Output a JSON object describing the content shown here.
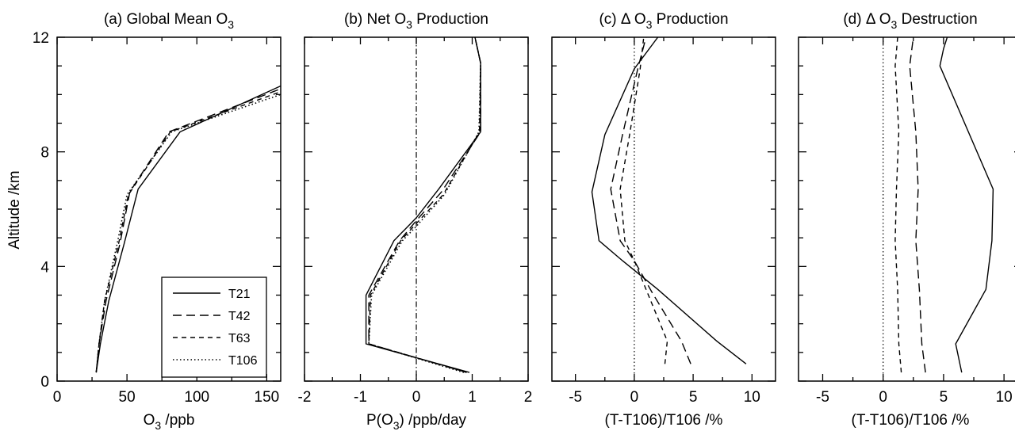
{
  "figure": {
    "ylabel": "Altitude /km",
    "yticks": [
      0,
      4,
      8,
      12
    ],
    "ylim": [
      0,
      12
    ]
  },
  "legend": {
    "entries": [
      {
        "name": "T21",
        "dash": "solid"
      },
      {
        "name": "T42",
        "dash": "long-dash"
      },
      {
        "name": "T63",
        "dash": "short-dash"
      },
      {
        "name": "T106",
        "dash": "dotted"
      }
    ]
  },
  "chart_data": [
    {
      "type": "line",
      "title_prefix": "(a) Global Mean O",
      "title_sub": "3",
      "title_suffix": "",
      "xlabel_prefix": "O",
      "xlabel_sub": "3",
      "xlabel_suffix": " /ppb",
      "xlim": [
        0,
        160
      ],
      "xticks": [
        0,
        50,
        100,
        150
      ],
      "ylim": [
        0,
        12
      ],
      "reference_line": null,
      "series": [
        {
          "name": "T21",
          "dash": "solid",
          "points": [
            [
              28,
              0.3
            ],
            [
              31,
              1.3
            ],
            [
              37,
              2.8
            ],
            [
              48,
              4.8
            ],
            [
              58,
              6.7
            ],
            [
              88,
              8.7
            ],
            [
              160,
              10.3
            ]
          ]
        },
        {
          "name": "T42",
          "dash": "long-dash",
          "points": [
            [
              28,
              0.3
            ],
            [
              30,
              1.3
            ],
            [
              35,
              2.8
            ],
            [
              45,
              4.8
            ],
            [
              52,
              6.6
            ],
            [
              80,
              8.7
            ],
            [
              160,
              10.2
            ]
          ]
        },
        {
          "name": "T63",
          "dash": "short-dash",
          "points": [
            [
              28,
              0.3
            ],
            [
              30,
              1.3
            ],
            [
              34,
              2.8
            ],
            [
              44,
              4.8
            ],
            [
              51,
              6.5
            ],
            [
              81,
              8.7
            ],
            [
              160,
              10.1
            ]
          ]
        },
        {
          "name": "T106",
          "dash": "dotted",
          "points": [
            [
              28,
              0.3
            ],
            [
              30,
              1.3
            ],
            [
              34,
              2.8
            ],
            [
              43,
              4.8
            ],
            [
              50,
              6.5
            ],
            [
              82,
              8.7
            ],
            [
              160,
              10.0
            ]
          ]
        }
      ]
    },
    {
      "type": "line",
      "title_prefix": "(b) Net O",
      "title_sub": "3",
      "title_suffix": " Production",
      "xlabel_prefix": "P(O",
      "xlabel_sub": "3",
      "xlabel_suffix": ") /ppb/day",
      "xlim": [
        -2,
        2
      ],
      "xticks": [
        -2,
        -1,
        0,
        1,
        2
      ],
      "ylim": [
        0,
        12
      ],
      "reference_line": {
        "x": 0,
        "style": "dash-dot"
      },
      "series": [
        {
          "name": "T21",
          "dash": "solid",
          "points": [
            [
              0.95,
              0.3
            ],
            [
              -0.9,
              1.3
            ],
            [
              -0.9,
              3.0
            ],
            [
              -0.4,
              4.9
            ],
            [
              0,
              5.7
            ],
            [
              0.4,
              6.7
            ],
            [
              1.15,
              8.7
            ],
            [
              1.15,
              11.1
            ],
            [
              1.05,
              12.0
            ]
          ]
        },
        {
          "name": "T42",
          "dash": "long-dash",
          "points": [
            [
              0.9,
              0.3
            ],
            [
              -0.85,
              1.3
            ],
            [
              -0.85,
              3.0
            ],
            [
              -0.3,
              4.9
            ],
            [
              0,
              5.6
            ],
            [
              0.45,
              6.6
            ],
            [
              1.15,
              8.7
            ],
            [
              1.15,
              11.1
            ],
            [
              1.05,
              12.0
            ]
          ]
        },
        {
          "name": "T63",
          "dash": "short-dash",
          "points": [
            [
              0.9,
              0.3
            ],
            [
              -0.85,
              1.3
            ],
            [
              -0.82,
              3.0
            ],
            [
              -0.28,
              4.9
            ],
            [
              0,
              5.5
            ],
            [
              0.48,
              6.5
            ],
            [
              1.13,
              8.7
            ],
            [
              1.15,
              11.1
            ],
            [
              1.05,
              12.0
            ]
          ]
        },
        {
          "name": "T106",
          "dash": "dotted",
          "points": [
            [
              0.85,
              0.3
            ],
            [
              -0.85,
              1.3
            ],
            [
              -0.8,
              3.0
            ],
            [
              -0.25,
              4.9
            ],
            [
              0,
              5.4
            ],
            [
              0.5,
              6.5
            ],
            [
              1.12,
              8.7
            ],
            [
              1.15,
              11.1
            ],
            [
              1.05,
              12.0
            ]
          ]
        }
      ]
    },
    {
      "type": "line",
      "title_prefix": "(c) Δ O",
      "title_sub": "3",
      "title_suffix": " Production",
      "xlabel_prefix": "(T-T106)/T106  /%",
      "xlabel_sub": "",
      "xlabel_suffix": "",
      "xlim": [
        -7,
        12
      ],
      "xticks": [
        -5,
        0,
        5,
        10
      ],
      "ylim": [
        0,
        12
      ],
      "reference_line": {
        "x": 0,
        "style": "dotted"
      },
      "series": [
        {
          "name": "T21",
          "dash": "solid",
          "points": [
            [
              9.5,
              0.6
            ],
            [
              7,
              1.4
            ],
            [
              2,
              3.2
            ],
            [
              -1,
              4.2
            ],
            [
              -3,
              4.9
            ],
            [
              -3.6,
              6.6
            ],
            [
              -2.5,
              8.6
            ],
            [
              0,
              10.9
            ],
            [
              2,
              12.0
            ]
          ]
        },
        {
          "name": "T42",
          "dash": "long-dash",
          "points": [
            [
              4.8,
              0.6
            ],
            [
              4,
              1.4
            ],
            [
              1.5,
              3.1
            ],
            [
              0,
              4.2
            ],
            [
              -1.2,
              4.9
            ],
            [
              -2,
              6.7
            ],
            [
              -1,
              8.6
            ],
            [
              0.3,
              10.9
            ],
            [
              1,
              12.0
            ]
          ]
        },
        {
          "name": "T63",
          "dash": "short-dash",
          "points": [
            [
              2.6,
              0.6
            ],
            [
              2.8,
              1.4
            ],
            [
              1.2,
              3.0
            ],
            [
              0,
              4.2
            ],
            [
              -0.8,
              4.9
            ],
            [
              -1.2,
              6.7
            ],
            [
              -0.4,
              8.6
            ],
            [
              0.5,
              10.9
            ],
            [
              0.8,
              12.0
            ]
          ]
        }
      ]
    },
    {
      "type": "line",
      "title_prefix": "(d) Δ O",
      "title_sub": "3",
      "title_suffix": " Destruction",
      "xlabel_prefix": "(T-T106)/T106  /%",
      "xlabel_sub": "",
      "xlabel_suffix": "",
      "xlim": [
        -7,
        11.5
      ],
      "xticks": [
        -5,
        0,
        5,
        10
      ],
      "ylim": [
        0,
        12
      ],
      "reference_line": {
        "x": 0,
        "style": "dotted"
      },
      "series": [
        {
          "name": "T21",
          "dash": "solid",
          "points": [
            [
              6.5,
              0.3
            ],
            [
              6,
              1.3
            ],
            [
              8.5,
              3.2
            ],
            [
              9,
              4.9
            ],
            [
              9.1,
              6.7
            ],
            [
              4.7,
              11.0
            ],
            [
              5,
              11.6
            ],
            [
              5.3,
              12.0
            ]
          ]
        },
        {
          "name": "T42",
          "dash": "long-dash",
          "points": [
            [
              3.5,
              0.3
            ],
            [
              3.2,
              1.3
            ],
            [
              3,
              3.2
            ],
            [
              2.7,
              4.9
            ],
            [
              2.9,
              6.7
            ],
            [
              2.7,
              8.7
            ],
            [
              2.2,
              11.0
            ],
            [
              2.5,
              12.0
            ]
          ]
        },
        {
          "name": "T63",
          "dash": "short-dash",
          "points": [
            [
              1.5,
              0.3
            ],
            [
              1.3,
              1.3
            ],
            [
              1.2,
              3.2
            ],
            [
              1,
              4.9
            ],
            [
              1.1,
              6.7
            ],
            [
              1.3,
              8.7
            ],
            [
              1,
              11.0
            ],
            [
              1.2,
              12.0
            ]
          ]
        }
      ]
    }
  ]
}
